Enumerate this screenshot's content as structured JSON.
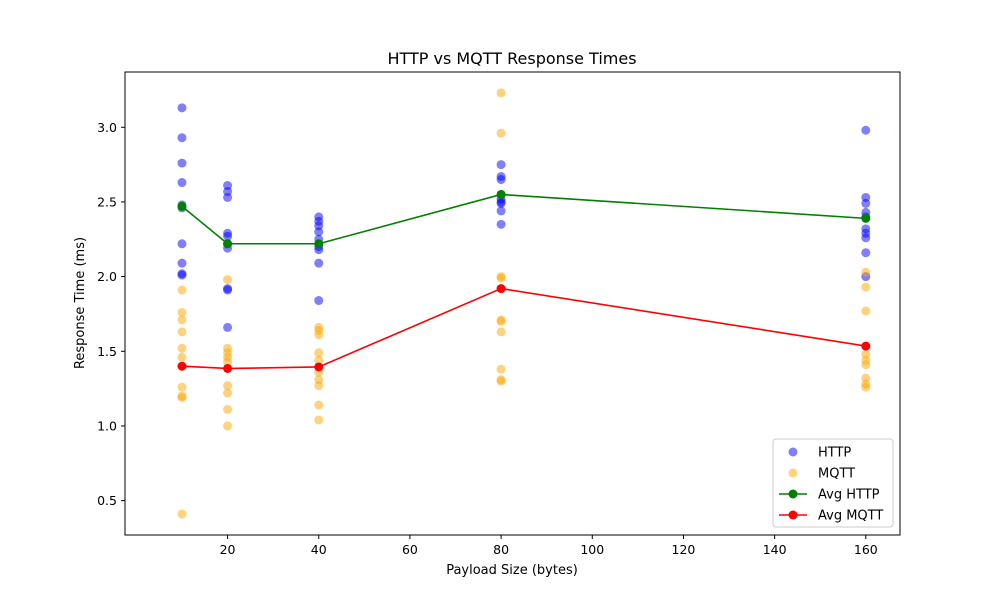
{
  "chart_data": {
    "type": "scatter",
    "title": "HTTP vs MQTT Response Times",
    "xlabel": "Payload Size (bytes)",
    "ylabel": "Response Time (ms)",
    "xlim": [
      -2.5,
      167.5
    ],
    "ylim": [
      0.27,
      3.37
    ],
    "xticks": [
      20,
      40,
      60,
      80,
      100,
      120,
      140,
      160
    ],
    "yticks": [
      0.5,
      1.0,
      1.5,
      2.0,
      2.5,
      3.0
    ],
    "ytick_labels": [
      "0.5",
      "1.0",
      "1.5",
      "2.0",
      "2.5",
      "3.0"
    ],
    "grid": false,
    "legend_position": "lower-right",
    "scatter_series": [
      {
        "name": "HTTP",
        "color": "#0000ff",
        "points": [
          [
            10,
            3.13
          ],
          [
            10,
            2.93
          ],
          [
            10,
            2.76
          ],
          [
            10,
            2.63
          ],
          [
            10,
            2.48
          ],
          [
            10,
            2.46
          ],
          [
            10,
            2.22
          ],
          [
            10,
            2.09
          ],
          [
            10,
            2.02
          ],
          [
            10,
            2.01
          ],
          [
            20,
            2.61
          ],
          [
            20,
            2.57
          ],
          [
            20,
            2.53
          ],
          [
            20,
            2.29
          ],
          [
            20,
            2.27
          ],
          [
            20,
            2.22
          ],
          [
            20,
            2.19
          ],
          [
            20,
            1.92
          ],
          [
            20,
            1.91
          ],
          [
            20,
            1.66
          ],
          [
            40,
            2.4
          ],
          [
            40,
            2.37
          ],
          [
            40,
            2.34
          ],
          [
            40,
            2.3
          ],
          [
            40,
            2.25
          ],
          [
            40,
            2.2
          ],
          [
            40,
            2.18
          ],
          [
            40,
            2.09
          ],
          [
            40,
            1.84
          ],
          [
            80,
            2.75
          ],
          [
            80,
            2.67
          ],
          [
            80,
            2.65
          ],
          [
            80,
            2.55
          ],
          [
            80,
            2.52
          ],
          [
            80,
            2.5
          ],
          [
            80,
            2.49
          ],
          [
            80,
            2.44
          ],
          [
            80,
            2.35
          ],
          [
            160,
            2.98
          ],
          [
            160,
            2.53
          ],
          [
            160,
            2.49
          ],
          [
            160,
            2.43
          ],
          [
            160,
            2.4
          ],
          [
            160,
            2.32
          ],
          [
            160,
            2.29
          ],
          [
            160,
            2.26
          ],
          [
            160,
            2.16
          ],
          [
            160,
            2.0
          ]
        ]
      },
      {
        "name": "MQTT",
        "color": "#ffa500",
        "points": [
          [
            10,
            1.91
          ],
          [
            10,
            1.76
          ],
          [
            10,
            1.71
          ],
          [
            10,
            1.63
          ],
          [
            10,
            1.52
          ],
          [
            10,
            1.46
          ],
          [
            10,
            1.26
          ],
          [
            10,
            1.2
          ],
          [
            10,
            1.19
          ],
          [
            10,
            0.41
          ],
          [
            20,
            1.98
          ],
          [
            20,
            1.52
          ],
          [
            20,
            1.49
          ],
          [
            20,
            1.46
          ],
          [
            20,
            1.43
          ],
          [
            20,
            1.27
          ],
          [
            20,
            1.22
          ],
          [
            20,
            1.11
          ],
          [
            20,
            1.0
          ],
          [
            40,
            1.66
          ],
          [
            40,
            1.64
          ],
          [
            40,
            1.61
          ],
          [
            40,
            1.49
          ],
          [
            40,
            1.44
          ],
          [
            40,
            1.36
          ],
          [
            40,
            1.31
          ],
          [
            40,
            1.27
          ],
          [
            40,
            1.14
          ],
          [
            40,
            1.04
          ],
          [
            80,
            3.23
          ],
          [
            80,
            2.96
          ],
          [
            80,
            2.0
          ],
          [
            80,
            1.99
          ],
          [
            80,
            1.71
          ],
          [
            80,
            1.7
          ],
          [
            80,
            1.63
          ],
          [
            80,
            1.38
          ],
          [
            80,
            1.31
          ],
          [
            80,
            1.3
          ],
          [
            160,
            2.03
          ],
          [
            160,
            1.93
          ],
          [
            160,
            1.77
          ],
          [
            160,
            1.48
          ],
          [
            160,
            1.44
          ],
          [
            160,
            1.41
          ],
          [
            160,
            1.32
          ],
          [
            160,
            1.28
          ],
          [
            160,
            1.26
          ]
        ]
      }
    ],
    "line_series": [
      {
        "name": "Avg HTTP",
        "color": "#008000",
        "x": [
          10,
          20,
          40,
          80,
          160
        ],
        "y": [
          2.47,
          2.22,
          2.22,
          2.55,
          2.39
        ]
      },
      {
        "name": "Avg MQTT",
        "color": "#ff0000",
        "x": [
          10,
          20,
          40,
          80,
          160
        ],
        "y": [
          1.4,
          1.385,
          1.395,
          1.92,
          1.535
        ]
      }
    ]
  }
}
